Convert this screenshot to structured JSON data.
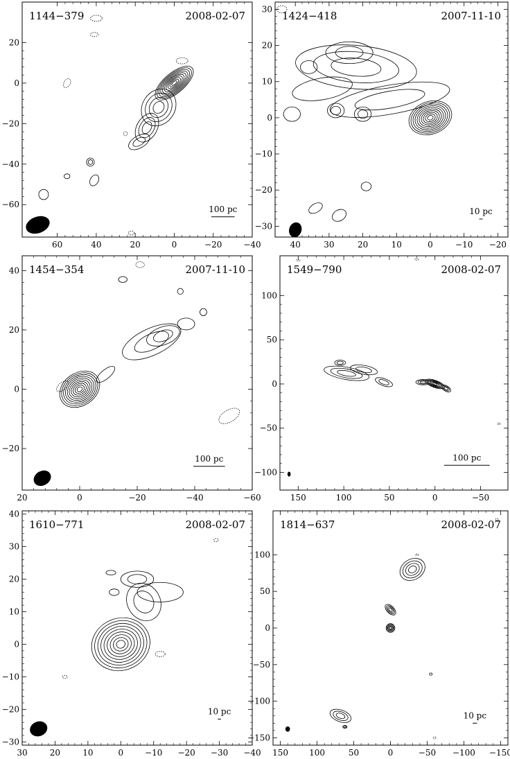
{
  "chart_data": [
    {
      "type": "contour",
      "source": "1144−379",
      "date": "2008-02-07",
      "scale_bar_label": "100 pc",
      "x_ticks": [
        60,
        40,
        20,
        0,
        -20,
        -40
      ],
      "y_ticks": [
        20,
        0,
        -20,
        -40,
        -60
      ],
      "xlim": [
        78,
        -40
      ],
      "ylim": [
        -76,
        40
      ],
      "show_x_tick_labels": true,
      "show_y_tick_labels": true,
      "beam": {
        "x": 70,
        "y": -70,
        "major": 7,
        "minor": 4.5,
        "pa": 70
      },
      "scale_bar": {
        "x": -25,
        "y": -66,
        "length": 12
      },
      "components": [
        {
          "x": 0,
          "y": 0,
          "sx": 12,
          "sy": 5,
          "angle": 40,
          "levels": 10
        },
        {
          "x": 8,
          "y": -12,
          "sx": 10,
          "sy": 8,
          "angle": 55,
          "levels": 4
        },
        {
          "x": 14,
          "y": -22,
          "sx": 8,
          "sy": 5,
          "angle": 60,
          "levels": 3
        },
        {
          "x": 18,
          "y": -29,
          "sx": 6,
          "sy": 3,
          "angle": 30,
          "levels": 2
        },
        {
          "x": 43,
          "y": -39,
          "sx": 2,
          "sy": 2,
          "angle": 0,
          "levels": 2
        },
        {
          "x": 41,
          "y": -48,
          "sx": 3,
          "sy": 2,
          "angle": 60,
          "levels": 1
        },
        {
          "x": 67,
          "y": -55,
          "sx": 2.5,
          "sy": 2.5,
          "angle": 0,
          "levels": 1
        },
        {
          "x": 55,
          "y": -46,
          "sx": 1.5,
          "sy": 1.2,
          "angle": 0,
          "levels": 1
        }
      ],
      "negative": [
        {
          "x": 55,
          "y": 0,
          "sx": 2.5,
          "sy": 1.5,
          "angle": 60
        },
        {
          "x": 40,
          "y": 32,
          "sx": 3,
          "sy": 1.5,
          "angle": 0
        },
        {
          "x": 41,
          "y": 24,
          "sx": 2,
          "sy": 1,
          "angle": 0
        },
        {
          "x": -4,
          "y": 11,
          "sx": 3,
          "sy": 1.5,
          "angle": 0
        },
        {
          "x": 22,
          "y": -74,
          "sx": 1.5,
          "sy": 1,
          "angle": 0
        },
        {
          "x": 25,
          "y": -25,
          "sx": 1,
          "sy": 1,
          "angle": 0
        }
      ]
    },
    {
      "type": "contour",
      "source": "1424−418",
      "date": "2007-11-10",
      "scale_bar_label": "10 pc",
      "x_ticks": [
        40,
        30,
        20,
        10,
        0,
        -10,
        -20
      ],
      "y_ticks": [
        30,
        20,
        10,
        0,
        -10,
        -20,
        -30
      ],
      "xlim": [
        46,
        -23
      ],
      "ylim": [
        -33,
        32
      ],
      "show_x_tick_labels": true,
      "show_y_tick_labels": true,
      "beam": {
        "x": 40,
        "y": -31,
        "major": 2.5,
        "minor": 1.9,
        "pa": 20
      },
      "scale_bar": {
        "x": -15,
        "y": -28,
        "length": 1
      },
      "components": [
        {
          "x": 0,
          "y": 0,
          "sx": 6.5,
          "sy": 4.5,
          "angle": 20,
          "levels": 10
        },
        {
          "x": 12,
          "y": 5,
          "sx": 18,
          "sy": 4,
          "angle": 10,
          "levels": 2
        },
        {
          "x": 22,
          "y": 14,
          "sx": 18,
          "sy": 6,
          "angle": -5,
          "levels": 3
        },
        {
          "x": 24,
          "y": 18,
          "sx": 7,
          "sy": 3,
          "angle": 0,
          "levels": 2
        },
        {
          "x": 32,
          "y": 8,
          "sx": 9,
          "sy": 3,
          "angle": 10,
          "levels": 1
        },
        {
          "x": 28,
          "y": 2,
          "sx": 2.5,
          "sy": 2,
          "angle": 0,
          "levels": 2
        },
        {
          "x": 20,
          "y": 1,
          "sx": 2.5,
          "sy": 2,
          "angle": 0,
          "levels": 2
        },
        {
          "x": 36,
          "y": 14,
          "sx": 2.5,
          "sy": 1.8,
          "angle": 0,
          "levels": 1
        },
        {
          "x": 41,
          "y": 1,
          "sx": 2.5,
          "sy": 2,
          "angle": 0,
          "levels": 1
        },
        {
          "x": 19,
          "y": -19,
          "sx": 1.5,
          "sy": 1.2,
          "angle": 0,
          "levels": 1
        },
        {
          "x": 34,
          "y": -25,
          "sx": 2.2,
          "sy": 1.2,
          "angle": 30,
          "levels": 1
        },
        {
          "x": 27,
          "y": -27,
          "sx": 2.2,
          "sy": 1.5,
          "angle": 30,
          "levels": 1
        }
      ],
      "negative": [
        {
          "x": 44,
          "y": 30,
          "sx": 1.5,
          "sy": 1,
          "angle": 0
        }
      ]
    },
    {
      "type": "contour",
      "source": "1454−354",
      "date": "2007-11-10",
      "scale_bar_label": "100 pc",
      "x_ticks": [
        20,
        0,
        -20,
        -40,
        -60
      ],
      "y_ticks": [
        40,
        20,
        0,
        -20
      ],
      "xlim": [
        20,
        -60
      ],
      "ylim": [
        -34,
        45
      ],
      "show_x_tick_labels": true,
      "show_y_tick_labels": true,
      "beam": {
        "x": 13,
        "y": -30,
        "major": 3.5,
        "minor": 2.7,
        "pa": 60
      },
      "scale_bar": {
        "x": -45,
        "y": -26,
        "length": 11
      },
      "components": [
        {
          "x": 0,
          "y": 0,
          "sx": 7.5,
          "sy": 5.5,
          "angle": 35,
          "levels": 10
        },
        {
          "x": -9,
          "y": 5,
          "sx": 4,
          "sy": 1.5,
          "angle": 40,
          "levels": 1
        },
        {
          "x": -25,
          "y": 16,
          "sx": 11,
          "sy": 4.5,
          "angle": 25,
          "levels": 2
        },
        {
          "x": -29,
          "y": 18,
          "sx": 6,
          "sy": 3,
          "angle": 20,
          "levels": 2
        },
        {
          "x": -37,
          "y": 22,
          "sx": 3,
          "sy": 2,
          "angle": 0,
          "levels": 1
        },
        {
          "x": -43,
          "y": 26,
          "sx": 1.2,
          "sy": 1.2,
          "angle": 0,
          "levels": 1
        },
        {
          "x": -35,
          "y": 33,
          "sx": 1,
          "sy": 1,
          "angle": 0,
          "levels": 1
        },
        {
          "x": -15,
          "y": 37,
          "sx": 1.5,
          "sy": 1,
          "angle": 0,
          "levels": 1
        }
      ],
      "negative": [
        {
          "x": 6,
          "y": 1,
          "sx": 2.5,
          "sy": 1.2,
          "angle": 40
        },
        {
          "x": -52,
          "y": -9,
          "sx": 4,
          "sy": 2,
          "angle": 30
        },
        {
          "x": -21,
          "y": 42,
          "sx": 1.5,
          "sy": 1,
          "angle": 0
        }
      ]
    },
    {
      "type": "contour",
      "source": "1549−790",
      "date": "2008-02-07",
      "scale_bar_label": "100 pc",
      "x_ticks": [
        150,
        100,
        50,
        0,
        -50
      ],
      "y_ticks": [
        100,
        50,
        0,
        -50,
        -100
      ],
      "xlim": [
        170,
        -80
      ],
      "ylim": [
        -120,
        145
      ],
      "show_x_tick_labels": true,
      "show_y_tick_labels": true,
      "beam": {
        "x": 160,
        "y": -102,
        "major": 3,
        "minor": 2,
        "pa": 0
      },
      "scale_bar": {
        "x": -35,
        "y": -92,
        "length": 50
      },
      "components": [
        {
          "x": 0,
          "y": 0,
          "sx": 11,
          "sy": 4,
          "angle": -20,
          "levels": 6
        },
        {
          "x": 13,
          "y": 2,
          "sx": 8,
          "sy": 3,
          "angle": 0,
          "levels": 3
        },
        {
          "x": -12,
          "y": -5,
          "sx": 6,
          "sy": 3,
          "angle": -30,
          "levels": 3
        },
        {
          "x": 97,
          "y": 12,
          "sx": 25,
          "sy": 7,
          "angle": -10,
          "levels": 3
        },
        {
          "x": 78,
          "y": 16,
          "sx": 15,
          "sy": 5,
          "angle": -10,
          "levels": 2
        },
        {
          "x": 56,
          "y": 2,
          "sx": 10,
          "sy": 4,
          "angle": -20,
          "levels": 2
        },
        {
          "x": 104,
          "y": 24,
          "sx": 6,
          "sy": 3,
          "angle": 0,
          "levels": 2
        }
      ],
      "negative": [
        {
          "x": 150,
          "y": 140,
          "sx": 2,
          "sy": 1,
          "angle": 0
        },
        {
          "x": 20,
          "y": 141,
          "sx": 2,
          "sy": 1,
          "angle": 0
        },
        {
          "x": -70,
          "y": -45,
          "sx": 1.5,
          "sy": 1,
          "angle": 0
        }
      ]
    },
    {
      "type": "contour",
      "source": "1610−771",
      "date": "2008-02-07",
      "scale_bar_label": "10 pc",
      "x_ticks": [
        30,
        20,
        10,
        0,
        -10,
        -20,
        -30,
        -40
      ],
      "y_ticks": [
        40,
        30,
        20,
        10,
        0,
        -10,
        -20,
        -30
      ],
      "xlim": [
        30,
        -40
      ],
      "ylim": [
        -31,
        41
      ],
      "show_x_tick_labels": true,
      "show_y_tick_labels": true,
      "beam": {
        "x": 25,
        "y": -26,
        "major": 3,
        "minor": 2.5,
        "pa": 70
      },
      "scale_bar": {
        "x": -30,
        "y": -23,
        "length": 1
      },
      "components": [
        {
          "x": 0,
          "y": 0,
          "sx": 9,
          "sy": 8,
          "angle": 20,
          "levels": 9
        },
        {
          "x": -7,
          "y": 13,
          "sx": 5,
          "sy": 6,
          "angle": 30,
          "levels": 2
        },
        {
          "x": -12,
          "y": 16,
          "sx": 7,
          "sy": 3,
          "angle": 0,
          "levels": 1
        },
        {
          "x": -5,
          "y": 20,
          "sx": 5,
          "sy": 2.5,
          "angle": 0,
          "levels": 2
        },
        {
          "x": 2,
          "y": 16,
          "sx": 1.5,
          "sy": 1,
          "angle": 0,
          "levels": 1
        },
        {
          "x": 3,
          "y": 22,
          "sx": 1.5,
          "sy": 0.7,
          "angle": 0,
          "levels": 1
        }
      ],
      "negative": [
        {
          "x": -12,
          "y": -3,
          "sx": 1.5,
          "sy": 0.8,
          "angle": 0
        },
        {
          "x": 17,
          "y": -10,
          "sx": 0.7,
          "sy": 0.5,
          "angle": 0
        },
        {
          "x": -29,
          "y": 32,
          "sx": 0.7,
          "sy": 0.5,
          "angle": 0
        }
      ]
    },
    {
      "type": "contour",
      "source": "1814−637",
      "date": "2008-02-07",
      "scale_bar_label": "10 pc",
      "x_ticks": [
        150,
        100,
        50,
        0,
        -50,
        -100,
        -150
      ],
      "y_ticks": [
        100,
        50,
        0,
        -50,
        -100,
        -150
      ],
      "xlim": [
        160,
        -160
      ],
      "ylim": [
        -160,
        160
      ],
      "show_x_tick_labels": true,
      "show_y_tick_labels": true,
      "beam": {
        "x": 140,
        "y": -138,
        "major": 4,
        "minor": 3.5,
        "pa": 0
      },
      "scale_bar": {
        "x": -115,
        "y": -130,
        "length": 6
      },
      "components": [
        {
          "x": 0,
          "y": 0,
          "sx": 6,
          "sy": 6,
          "angle": 0,
          "levels": 5
        },
        {
          "x": 0,
          "y": 25,
          "sx": 9,
          "sy": 5,
          "angle": -45,
          "levels": 4
        },
        {
          "x": -30,
          "y": 80,
          "sx": 18,
          "sy": 14,
          "angle": 30,
          "levels": 4
        },
        {
          "x": 68,
          "y": -120,
          "sx": 15,
          "sy": 8,
          "angle": -20,
          "levels": 3
        },
        {
          "x": 62,
          "y": -135,
          "sx": 3,
          "sy": 2,
          "angle": 0,
          "levels": 2
        },
        {
          "x": -55,
          "y": -63,
          "sx": 2,
          "sy": 1.5,
          "angle": 0,
          "levels": 1
        }
      ],
      "negative": [
        {
          "x": -36,
          "y": 100,
          "sx": 2,
          "sy": 1,
          "angle": 0
        },
        {
          "x": -60,
          "y": -150,
          "sx": 2,
          "sy": 1.5,
          "angle": 0
        },
        {
          "x": -145,
          "y": 148,
          "sx": 2,
          "sy": 1.5,
          "angle": 0
        }
      ]
    }
  ]
}
